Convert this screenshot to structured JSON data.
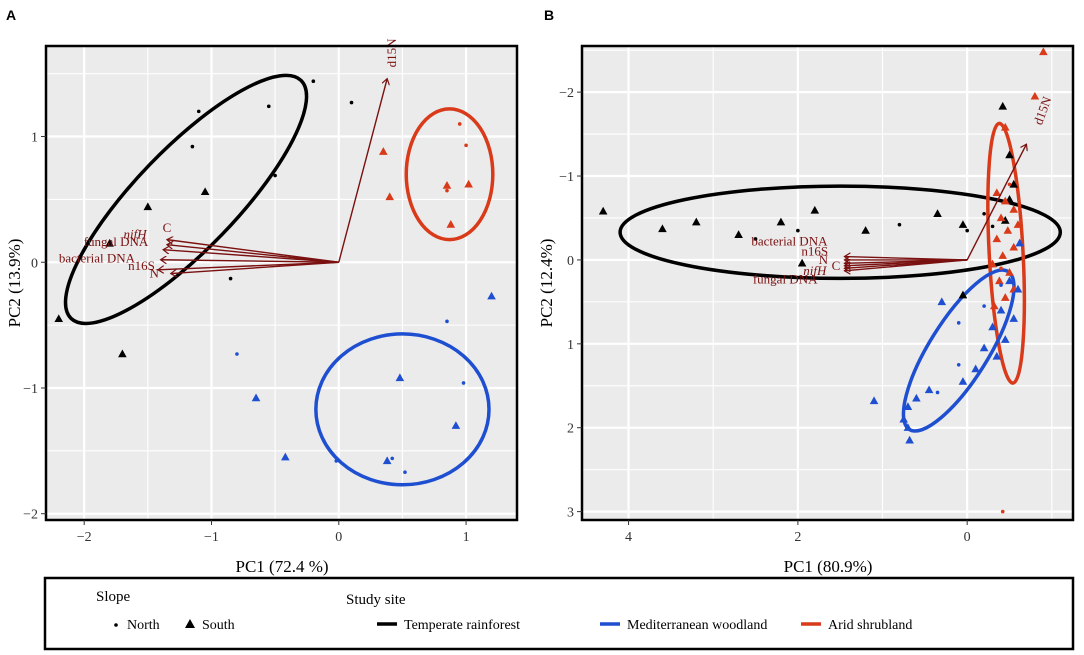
{
  "colors": {
    "temperate": "#000000",
    "mediterranean": "#1f4fd1",
    "arid": "#d93a1a",
    "arrow": "#7a1010",
    "grid": "#e2e2e2",
    "panel_bg": "#ebebeb"
  },
  "legend": {
    "slope_title": "Slope",
    "slope_north": "North",
    "slope_south": "South",
    "site_title": "Study site",
    "site_temperate": "Temperate rainforest",
    "site_mediterranean": "Mediterranean woodland",
    "site_arid": "Arid shrubland"
  },
  "chart_data": [
    {
      "panel": "A",
      "type": "scatter",
      "xlabel": "PC1 (72.4 %)",
      "ylabel": "PC2 (13.9%)",
      "xlim": [
        -2.3,
        1.4
      ],
      "ylim": [
        -2.05,
        1.72
      ],
      "xticks": [
        -2,
        -1,
        0,
        1
      ],
      "yticks": [
        -2,
        -1,
        0,
        1
      ],
      "xtick_labels": [
        "−2",
        "−1",
        "0",
        "1"
      ],
      "ytick_labels": [
        "−2",
        "−1",
        "0",
        "1"
      ],
      "points": [
        {
          "x": -1.1,
          "y": 1.2,
          "slope": "North",
          "site": "temperate"
        },
        {
          "x": -1.15,
          "y": 0.92,
          "slope": "North",
          "site": "temperate"
        },
        {
          "x": -0.55,
          "y": 1.24,
          "slope": "North",
          "site": "temperate"
        },
        {
          "x": -0.2,
          "y": 1.44,
          "slope": "North",
          "site": "temperate"
        },
        {
          "x": 0.1,
          "y": 1.27,
          "slope": "North",
          "site": "temperate"
        },
        {
          "x": -0.5,
          "y": 0.69,
          "slope": "North",
          "site": "temperate"
        },
        {
          "x": -0.85,
          "y": -0.13,
          "slope": "North",
          "site": "temperate"
        },
        {
          "x": -1.05,
          "y": 0.56,
          "slope": "South",
          "site": "temperate"
        },
        {
          "x": -1.5,
          "y": 0.44,
          "slope": "South",
          "site": "temperate"
        },
        {
          "x": -1.8,
          "y": 0.15,
          "slope": "South",
          "site": "temperate"
        },
        {
          "x": -2.2,
          "y": -0.45,
          "slope": "South",
          "site": "temperate"
        },
        {
          "x": -1.7,
          "y": -0.73,
          "slope": "South",
          "site": "temperate"
        },
        {
          "x": 0.95,
          "y": 1.1,
          "slope": "North",
          "site": "arid"
        },
        {
          "x": 1.0,
          "y": 0.93,
          "slope": "North",
          "site": "arid"
        },
        {
          "x": 0.85,
          "y": 0.57,
          "slope": "North",
          "site": "arid"
        },
        {
          "x": 0.35,
          "y": 0.88,
          "slope": "South",
          "site": "arid"
        },
        {
          "x": 0.85,
          "y": 0.61,
          "slope": "South",
          "site": "arid"
        },
        {
          "x": 1.02,
          "y": 0.62,
          "slope": "South",
          "site": "arid"
        },
        {
          "x": 0.88,
          "y": 0.3,
          "slope": "South",
          "site": "arid"
        },
        {
          "x": 0.4,
          "y": 0.52,
          "slope": "South",
          "site": "arid"
        },
        {
          "x": -0.8,
          "y": -0.73,
          "slope": "North",
          "site": "mediterranean"
        },
        {
          "x": 0.85,
          "y": -0.47,
          "slope": "North",
          "site": "mediterranean"
        },
        {
          "x": 0.98,
          "y": -0.96,
          "slope": "North",
          "site": "mediterranean"
        },
        {
          "x": -0.02,
          "y": -1.58,
          "slope": "North",
          "site": "mediterranean"
        },
        {
          "x": 0.42,
          "y": -1.56,
          "slope": "North",
          "site": "mediterranean"
        },
        {
          "x": 0.52,
          "y": -1.67,
          "slope": "North",
          "site": "mediterranean"
        },
        {
          "x": -0.65,
          "y": -1.08,
          "slope": "South",
          "site": "mediterranean"
        },
        {
          "x": 1.2,
          "y": -0.27,
          "slope": "South",
          "site": "mediterranean"
        },
        {
          "x": 0.48,
          "y": -0.92,
          "slope": "South",
          "site": "mediterranean"
        },
        {
          "x": 0.92,
          "y": -1.3,
          "slope": "South",
          "site": "mediterranean"
        },
        {
          "x": -0.42,
          "y": -1.55,
          "slope": "South",
          "site": "mediterranean"
        },
        {
          "x": 0.38,
          "y": -1.58,
          "slope": "South",
          "site": "mediterranean"
        }
      ],
      "ellipses": [
        {
          "site": "temperate",
          "cx": -1.2,
          "cy": 0.5,
          "rx": 1.3,
          "ry": 0.4,
          "angle_deg": 46
        },
        {
          "site": "arid",
          "cx": 0.87,
          "cy": 0.7,
          "rx": 0.34,
          "ry": 0.52,
          "angle_deg": 0
        },
        {
          "site": "mediterranean",
          "cx": 0.5,
          "cy": -1.17,
          "rx": 0.68,
          "ry": 0.6,
          "angle_deg": 0
        }
      ],
      "arrow_origin": [
        0,
        0
      ],
      "loadings": [
        {
          "name": "d15N",
          "x": 0.38,
          "y": 1.46,
          "lx": 0.45,
          "ly": 1.55,
          "rotate": -90,
          "italic": false
        },
        {
          "name": "C",
          "x": -1.35,
          "y": 0.18,
          "lx": -1.35,
          "ly": 0.24,
          "rotate": 0,
          "italic": false
        },
        {
          "name": "nifH",
          "x": -1.35,
          "y": 0.14,
          "lx": -1.6,
          "ly": 0.19,
          "rotate": 0,
          "italic": true
        },
        {
          "name": "fungal DNA",
          "x": -1.38,
          "y": 0.1,
          "lx": -1.75,
          "ly": 0.13,
          "rotate": 0,
          "italic": false
        },
        {
          "name": "bacterial DNA",
          "x": -1.4,
          "y": 0.02,
          "lx": -1.9,
          "ly": 0.0,
          "rotate": 0,
          "italic": false
        },
        {
          "name": "n16S",
          "x": -1.42,
          "y": -0.06,
          "lx": -1.55,
          "ly": -0.06,
          "rotate": 0,
          "italic": false
        },
        {
          "name": "N",
          "x": -1.32,
          "y": -0.09,
          "lx": -1.45,
          "ly": -0.12,
          "rotate": 0,
          "italic": false
        }
      ]
    },
    {
      "panel": "B",
      "type": "scatter",
      "xlabel": "PC1 (80.9%)",
      "ylabel": "PC2 (12.4%)",
      "xlim": [
        4.55,
        -1.25
      ],
      "ylim": [
        3.1,
        -2.55
      ],
      "xticks": [
        4,
        2,
        0
      ],
      "yticks": [
        -2,
        -1,
        0,
        1,
        2,
        3
      ],
      "xtick_labels": [
        "4",
        "2",
        "0"
      ],
      "ytick_labels": [
        "−2",
        "−1",
        "0",
        "1",
        "2",
        "3"
      ],
      "points": [
        {
          "x": 4.3,
          "y": -0.58,
          "slope": "South",
          "site": "temperate"
        },
        {
          "x": 3.6,
          "y": -0.37,
          "slope": "South",
          "site": "temperate"
        },
        {
          "x": 3.2,
          "y": -0.45,
          "slope": "South",
          "site": "temperate"
        },
        {
          "x": 2.7,
          "y": -0.3,
          "slope": "South",
          "site": "temperate"
        },
        {
          "x": 2.2,
          "y": -0.45,
          "slope": "South",
          "site": "temperate"
        },
        {
          "x": 1.8,
          "y": -0.59,
          "slope": "South",
          "site": "temperate"
        },
        {
          "x": 1.2,
          "y": -0.35,
          "slope": "South",
          "site": "temperate"
        },
        {
          "x": 0.35,
          "y": -0.55,
          "slope": "South",
          "site": "temperate"
        },
        {
          "x": 0.05,
          "y": -0.42,
          "slope": "South",
          "site": "temperate"
        },
        {
          "x": -0.55,
          "y": -0.9,
          "slope": "South",
          "site": "temperate"
        },
        {
          "x": -0.5,
          "y": -0.72,
          "slope": "South",
          "site": "temperate"
        },
        {
          "x": -0.45,
          "y": -0.47,
          "slope": "South",
          "site": "temperate"
        },
        {
          "x": -0.5,
          "y": -1.25,
          "slope": "South",
          "site": "temperate"
        },
        {
          "x": -0.42,
          "y": -1.83,
          "slope": "South",
          "site": "temperate"
        },
        {
          "x": 0.05,
          "y": 0.42,
          "slope": "South",
          "site": "temperate"
        },
        {
          "x": 1.95,
          "y": 0.04,
          "slope": "South",
          "site": "temperate"
        },
        {
          "x": 2.5,
          "y": -0.25,
          "slope": "North",
          "site": "temperate"
        },
        {
          "x": 2.0,
          "y": -0.35,
          "slope": "North",
          "site": "temperate"
        },
        {
          "x": 0.8,
          "y": -0.42,
          "slope": "North",
          "site": "temperate"
        },
        {
          "x": 0.0,
          "y": -0.35,
          "slope": "North",
          "site": "temperate"
        },
        {
          "x": -0.3,
          "y": -0.4,
          "slope": "North",
          "site": "temperate"
        },
        {
          "x": -0.2,
          "y": -0.55,
          "slope": "North",
          "site": "temperate"
        },
        {
          "x": -0.9,
          "y": -2.48,
          "slope": "South",
          "site": "arid"
        },
        {
          "x": -0.8,
          "y": -1.95,
          "slope": "South",
          "site": "arid"
        },
        {
          "x": -0.45,
          "y": -1.58,
          "slope": "South",
          "site": "arid"
        },
        {
          "x": -0.35,
          "y": -0.8,
          "slope": "South",
          "site": "arid"
        },
        {
          "x": -0.45,
          "y": -0.7,
          "slope": "South",
          "site": "arid"
        },
        {
          "x": -0.55,
          "y": -0.6,
          "slope": "South",
          "site": "arid"
        },
        {
          "x": -0.4,
          "y": -0.5,
          "slope": "South",
          "site": "arid"
        },
        {
          "x": -0.6,
          "y": -0.42,
          "slope": "South",
          "site": "arid"
        },
        {
          "x": -0.48,
          "y": -0.35,
          "slope": "South",
          "site": "arid"
        },
        {
          "x": -0.35,
          "y": -0.25,
          "slope": "South",
          "site": "arid"
        },
        {
          "x": -0.55,
          "y": -0.15,
          "slope": "South",
          "site": "arid"
        },
        {
          "x": -0.42,
          "y": -0.05,
          "slope": "South",
          "site": "arid"
        },
        {
          "x": -0.3,
          "y": 0.05,
          "slope": "South",
          "site": "arid"
        },
        {
          "x": -0.5,
          "y": 0.15,
          "slope": "South",
          "site": "arid"
        },
        {
          "x": -0.38,
          "y": 0.25,
          "slope": "South",
          "site": "arid"
        },
        {
          "x": -0.55,
          "y": 0.35,
          "slope": "South",
          "site": "arid"
        },
        {
          "x": -0.45,
          "y": 0.45,
          "slope": "South",
          "site": "arid"
        },
        {
          "x": -0.32,
          "y": 0.55,
          "slope": "South",
          "site": "arid"
        },
        {
          "x": -0.5,
          "y": -0.9,
          "slope": "North",
          "site": "arid"
        },
        {
          "x": -0.4,
          "y": 0.1,
          "slope": "North",
          "site": "arid"
        },
        {
          "x": -0.42,
          "y": 3.0,
          "slope": "North",
          "site": "arid"
        },
        {
          "x": -0.62,
          "y": -0.2,
          "slope": "South",
          "site": "mediterranean"
        },
        {
          "x": -0.5,
          "y": 0.25,
          "slope": "South",
          "site": "mediterranean"
        },
        {
          "x": -0.6,
          "y": 0.35,
          "slope": "South",
          "site": "mediterranean"
        },
        {
          "x": -0.4,
          "y": 0.6,
          "slope": "South",
          "site": "mediterranean"
        },
        {
          "x": -0.55,
          "y": 0.7,
          "slope": "South",
          "site": "mediterranean"
        },
        {
          "x": -0.3,
          "y": 0.8,
          "slope": "South",
          "site": "mediterranean"
        },
        {
          "x": -0.45,
          "y": 0.95,
          "slope": "South",
          "site": "mediterranean"
        },
        {
          "x": -0.2,
          "y": 1.05,
          "slope": "South",
          "site": "mediterranean"
        },
        {
          "x": -0.35,
          "y": 1.15,
          "slope": "South",
          "site": "mediterranean"
        },
        {
          "x": -0.1,
          "y": 1.3,
          "slope": "South",
          "site": "mediterranean"
        },
        {
          "x": 0.05,
          "y": 1.45,
          "slope": "South",
          "site": "mediterranean"
        },
        {
          "x": 0.3,
          "y": 0.5,
          "slope": "South",
          "site": "mediterranean"
        },
        {
          "x": 0.45,
          "y": 1.55,
          "slope": "South",
          "site": "mediterranean"
        },
        {
          "x": 0.6,
          "y": 1.65,
          "slope": "South",
          "site": "mediterranean"
        },
        {
          "x": 0.7,
          "y": 1.75,
          "slope": "South",
          "site": "mediterranean"
        },
        {
          "x": 0.75,
          "y": 1.9,
          "slope": "South",
          "site": "mediterranean"
        },
        {
          "x": 0.7,
          "y": 2.0,
          "slope": "South",
          "site": "mediterranean"
        },
        {
          "x": 0.68,
          "y": 2.15,
          "slope": "South",
          "site": "mediterranean"
        },
        {
          "x": 1.1,
          "y": 1.68,
          "slope": "South",
          "site": "mediterranean"
        },
        {
          "x": -0.4,
          "y": 0.3,
          "slope": "North",
          "site": "mediterranean"
        },
        {
          "x": -0.2,
          "y": 0.55,
          "slope": "North",
          "site": "mediterranean"
        },
        {
          "x": 0.1,
          "y": 0.75,
          "slope": "North",
          "site": "mediterranean"
        },
        {
          "x": 0.1,
          "y": 1.25,
          "slope": "North",
          "site": "mediterranean"
        },
        {
          "x": 0.35,
          "y": 1.58,
          "slope": "North",
          "site": "mediterranean"
        }
      ],
      "ellipses": [
        {
          "site": "temperate",
          "cx": 1.5,
          "cy": -0.33,
          "rx": 2.6,
          "ry": 0.55,
          "angle_deg": 0
        },
        {
          "site": "arid",
          "cx": -0.46,
          "cy": -0.08,
          "rx": 0.2,
          "ry": 1.55,
          "angle_deg": 3
        },
        {
          "site": "mediterranean",
          "cx": 0.1,
          "cy": 1.08,
          "rx": 1.1,
          "ry": 0.35,
          "angle_deg": 58
        }
      ],
      "arrow_origin": [
        0,
        0
      ],
      "loadings": [
        {
          "name": "d15N",
          "x": -0.7,
          "y": -1.38,
          "lx": -0.88,
          "ly": -1.6,
          "rotate": -70,
          "italic": false
        },
        {
          "name": "nifH",
          "x": 1.45,
          "y": 0.13,
          "lx": 1.8,
          "ly": 0.18,
          "rotate": 0,
          "italic": true
        },
        {
          "name": "fungal DNA",
          "x": 1.45,
          "y": 0.1,
          "lx": 2.15,
          "ly": 0.28,
          "rotate": 0,
          "italic": false
        },
        {
          "name": "C",
          "x": 1.45,
          "y": 0.07,
          "lx": 1.55,
          "ly": 0.12,
          "rotate": 0,
          "italic": false
        },
        {
          "name": "N",
          "x": 1.45,
          "y": 0.04,
          "lx": 1.7,
          "ly": 0.05,
          "rotate": 0,
          "italic": false
        },
        {
          "name": "n16S",
          "x": 1.45,
          "y": 0.0,
          "lx": 1.8,
          "ly": -0.05,
          "rotate": 0,
          "italic": false
        },
        {
          "name": "bacterial DNA",
          "x": 1.45,
          "y": -0.04,
          "lx": 2.1,
          "ly": -0.17,
          "rotate": 0,
          "italic": false
        }
      ]
    }
  ]
}
